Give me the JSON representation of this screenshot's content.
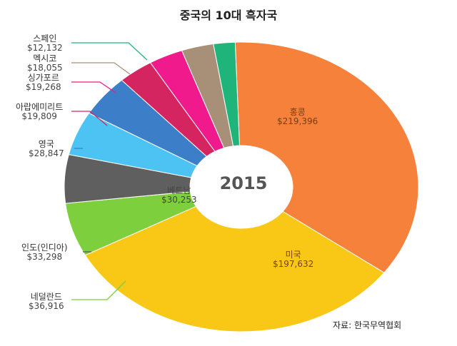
{
  "chart_data": {
    "type": "pie",
    "title": "중국의 10대 흑자국",
    "center_label": "2015",
    "source": "자료: 한국무역협회",
    "slices": [
      {
        "name": "홍콩",
        "value": 219396,
        "value_label": "$219,396",
        "color": "#f5813a"
      },
      {
        "name": "미국",
        "value": 197632,
        "value_label": "$197,632",
        "color": "#f9c816"
      },
      {
        "name": "네덜란드",
        "value": 36916,
        "value_label": "$36,916",
        "color": "#7dcf3d"
      },
      {
        "name": "인도(인디아)",
        "value": 33298,
        "value_label": "$33,298",
        "color": "#5f5f5f"
      },
      {
        "name": "베트남",
        "value": 30253,
        "value_label": "$30,253",
        "color": "#4cc3f2"
      },
      {
        "name": "영국",
        "value": 28847,
        "value_label": "$28,847",
        "color": "#3c7fc8"
      },
      {
        "name": "아랍에미리트",
        "value": 19809,
        "value_label": "$19,809",
        "color": "#d52561"
      },
      {
        "name": "싱가포르",
        "value": 19268,
        "value_label": "$19,268",
        "color": "#f01a8c"
      },
      {
        "name": "멕시코",
        "value": 18055,
        "value_label": "$18,055",
        "color": "#a89078"
      },
      {
        "name": "스페인",
        "value": 12132,
        "value_label": "$12,132",
        "color": "#1fb47a"
      }
    ]
  }
}
